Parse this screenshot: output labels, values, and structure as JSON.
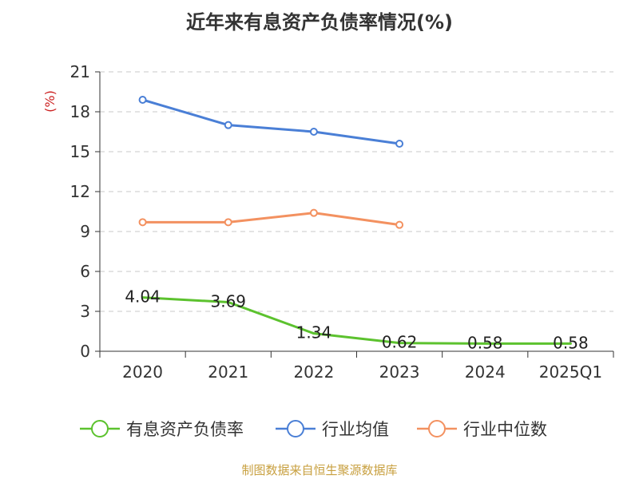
{
  "title": "近年来有息资产负债率情况(%)",
  "source": "制图数据来自恒生聚源数据库",
  "chart_data": {
    "type": "line",
    "title": "近年来有息资产负债率情况(%)",
    "ylabel": "(%)",
    "xlabel": "",
    "categories": [
      "2020",
      "2021",
      "2022",
      "2023",
      "2024",
      "2025Q1"
    ],
    "ylim": [
      0,
      21
    ],
    "yticks": [
      0,
      3,
      6,
      9,
      12,
      15,
      18,
      21
    ],
    "grid": true,
    "legend_position": "bottom",
    "series": [
      {
        "name": "有息资产负债率",
        "color": "#5cc22e",
        "values": [
          4.04,
          3.69,
          1.34,
          0.62,
          0.58,
          0.58
        ],
        "labels": [
          "4.04",
          "3.69",
          "1.34",
          "0.62",
          "0.58",
          "0.58"
        ],
        "markers": false
      },
      {
        "name": "行业均值",
        "color": "#4a7fd6",
        "values": [
          18.9,
          17.0,
          16.5,
          15.6,
          null,
          null
        ],
        "markers": true
      },
      {
        "name": "行业中位数",
        "color": "#f39160",
        "values": [
          9.7,
          9.7,
          10.4,
          9.5,
          null,
          null
        ],
        "markers": true
      }
    ]
  }
}
